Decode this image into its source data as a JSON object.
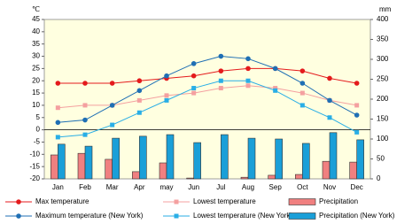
{
  "chart_data": {
    "type": "combo",
    "y_label": "℃",
    "y2_label": "mm",
    "categories": [
      "Jan",
      "Feb",
      "Mar",
      "Apr",
      "may",
      "Jun",
      "Jul",
      "Aug",
      "Sep",
      "Oct",
      "Nov",
      "Dec"
    ],
    "ylim": [
      -20,
      45
    ],
    "yticks": [
      -20,
      -15,
      -10,
      -5,
      0,
      5,
      10,
      15,
      20,
      25,
      30,
      35,
      40,
      45
    ],
    "y2lim": [
      0,
      400
    ],
    "y2ticks": [
      0,
      50,
      100,
      150,
      200,
      250,
      300,
      350,
      400
    ],
    "legend": "bottom",
    "series": [
      {
        "name": "Max temperature",
        "kind": "line",
        "marker": "circle",
        "color": "#e41a1c",
        "values": [
          19,
          19,
          19,
          20,
          21,
          22,
          24,
          25,
          25,
          24,
          21,
          19
        ]
      },
      {
        "name": "Lowest temperature",
        "kind": "line",
        "marker": "square",
        "color": "#f4a0a0",
        "values": [
          9,
          10,
          10,
          12,
          14,
          15,
          17,
          18,
          17,
          15,
          12,
          10
        ]
      },
      {
        "name": "Precipitation",
        "kind": "bar",
        "axis": "y2",
        "color": "#f08080",
        "values": [
          60,
          64,
          49,
          18,
          40,
          2,
          0,
          4,
          9,
          11,
          44,
          42
        ]
      },
      {
        "name": "Maximum temperature (New York)",
        "kind": "line",
        "marker": "circle",
        "color": "#1f6fb4",
        "values": [
          3,
          4,
          10,
          16,
          22,
          27,
          30,
          29,
          25,
          19,
          12,
          6
        ]
      },
      {
        "name": "Lowest temperature (New York)",
        "kind": "line",
        "marker": "square",
        "color": "#29aee6",
        "values": [
          -3,
          -2,
          2,
          7,
          12,
          17,
          20,
          20,
          16,
          10,
          5,
          -1
        ]
      },
      {
        "name": "Precipitation (New York)",
        "kind": "bar",
        "axis": "y2",
        "color": "#1a9fd8",
        "values": [
          87,
          82,
          102,
          107,
          111,
          91,
          111,
          102,
          100,
          89,
          116,
          98
        ]
      }
    ]
  }
}
